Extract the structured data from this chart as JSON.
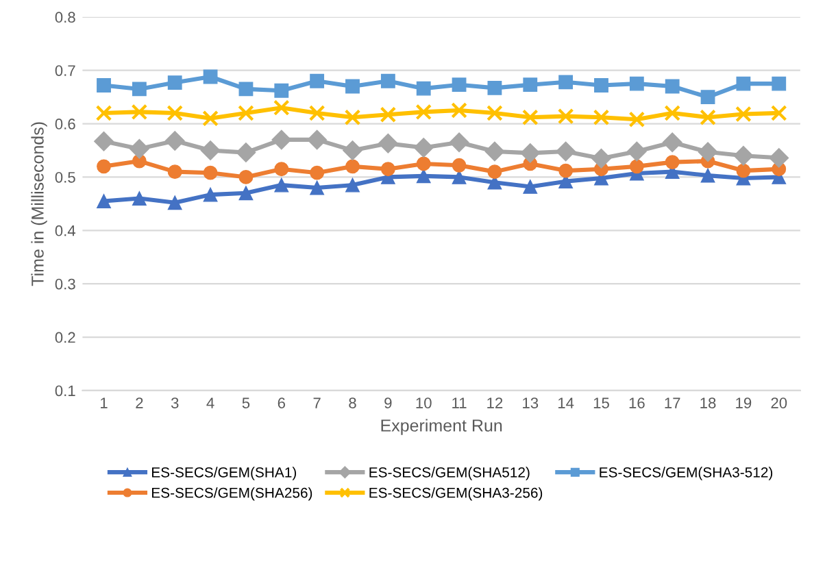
{
  "chart_data": {
    "type": "line",
    "xlabel": "Experiment Run",
    "ylabel": "Time in (Milliseconds)",
    "categories": [
      "1",
      "2",
      "3",
      "4",
      "5",
      "6",
      "7",
      "8",
      "9",
      "10",
      "11",
      "12",
      "13",
      "14",
      "15",
      "16",
      "17",
      "18",
      "19",
      "20"
    ],
    "series": [
      {
        "name": "ES-SECS/GEM(SHA1)",
        "color": "#4472c4",
        "marker": "triangle",
        "values": [
          0.455,
          0.46,
          0.452,
          0.467,
          0.47,
          0.485,
          0.48,
          0.485,
          0.5,
          0.502,
          0.5,
          0.49,
          0.482,
          0.492,
          0.498,
          0.507,
          0.51,
          0.503,
          0.498,
          0.5
        ]
      },
      {
        "name": "ES-SECS/GEM(SHA256)",
        "color": "#ed7d31",
        "marker": "circle",
        "values": [
          0.52,
          0.53,
          0.51,
          0.508,
          0.5,
          0.515,
          0.508,
          0.52,
          0.515,
          0.525,
          0.522,
          0.51,
          0.525,
          0.512,
          0.515,
          0.52,
          0.528,
          0.53,
          0.512,
          0.515
        ]
      },
      {
        "name": "ES-SECS/GEM(SHA512)",
        "color": "#a5a5a5",
        "marker": "diamond",
        "values": [
          0.567,
          0.553,
          0.568,
          0.55,
          0.546,
          0.57,
          0.57,
          0.55,
          0.563,
          0.555,
          0.565,
          0.548,
          0.545,
          0.548,
          0.535,
          0.548,
          0.565,
          0.547,
          0.54,
          0.536
        ]
      },
      {
        "name": "ES-SECS/GEM(SHA3-256)",
        "color": "#ffc000",
        "marker": "cross",
        "values": [
          0.62,
          0.622,
          0.62,
          0.61,
          0.62,
          0.63,
          0.62,
          0.612,
          0.617,
          0.622,
          0.625,
          0.62,
          0.612,
          0.614,
          0.612,
          0.608,
          0.62,
          0.612,
          0.618,
          0.62
        ]
      },
      {
        "name": "ES-SECS/GEM(SHA3-512)",
        "color": "#5b9bd5",
        "marker": "square",
        "values": [
          0.672,
          0.665,
          0.677,
          0.688,
          0.665,
          0.662,
          0.68,
          0.67,
          0.68,
          0.666,
          0.673,
          0.667,
          0.673,
          0.678,
          0.672,
          0.675,
          0.67,
          0.65,
          0.675,
          0.675
        ]
      }
    ],
    "ylim": [
      0.1,
      0.8
    ],
    "yticks": [
      0.1,
      0.2,
      0.3,
      0.4,
      0.5,
      0.6,
      0.7,
      0.8
    ],
    "grid": "y",
    "legend": "bottom",
    "line_style": "solid"
  }
}
